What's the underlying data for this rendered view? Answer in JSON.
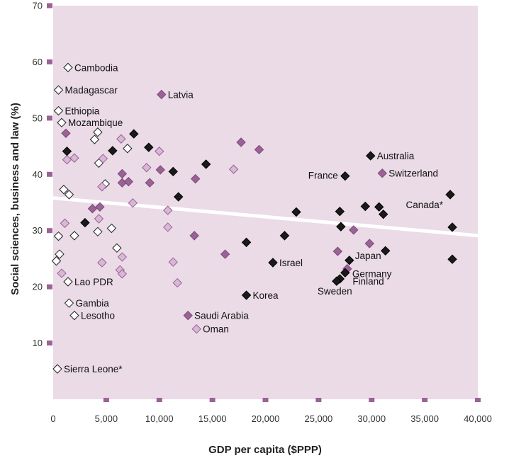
{
  "chart_data": {
    "type": "scatter",
    "title": "",
    "xlabel": "GDP per capita ($PPP)",
    "ylabel": "Social sciences, business and law (%)",
    "xlim": [
      0,
      40000
    ],
    "ylim": [
      0,
      70
    ],
    "x_ticks": [
      0,
      5000,
      10000,
      15000,
      20000,
      25000,
      30000,
      35000,
      40000
    ],
    "x_tick_labels": [
      "0",
      "5,000",
      "10,000",
      "15,000",
      "20,000",
      "25,000",
      "30,000",
      "35,000",
      "40,000"
    ],
    "y_ticks": [
      10,
      20,
      30,
      40,
      50,
      60,
      70
    ],
    "y_tick_labels": [
      "10",
      "20",
      "30",
      "40",
      "50",
      "60",
      "70"
    ],
    "grid": false,
    "plot_background": "#eadbe6",
    "trendline": {
      "x": [
        0,
        40000
      ],
      "y": [
        35.8,
        29.1
      ],
      "color": "#ffffff"
    },
    "colors": {
      "white": "#ffffff",
      "light": "#d7b8d5",
      "medium": "#9b6296",
      "dark": "#1a1a1a"
    },
    "series": [
      {
        "style": "white",
        "points": [
          {
            "x": 1400,
            "y": 59,
            "label": "Cambodia"
          },
          {
            "x": 500,
            "y": 55,
            "label": "Madagascar"
          },
          {
            "x": 500,
            "y": 51.3,
            "label": "Ethiopia"
          },
          {
            "x": 800,
            "y": 49.2,
            "label": "Mozambique"
          },
          {
            "x": 1400,
            "y": 20.9,
            "label": "Lao PDR"
          },
          {
            "x": 1500,
            "y": 17.1,
            "label": "Gambia"
          },
          {
            "x": 2000,
            "y": 14.9,
            "label": "Lesotho"
          },
          {
            "x": 400,
            "y": 5.4,
            "label": "Sierra Leone*"
          },
          {
            "x": 3900,
            "y": 46.2
          },
          {
            "x": 4200,
            "y": 47.5
          },
          {
            "x": 4300,
            "y": 42.0
          },
          {
            "x": 4900,
            "y": 38.3
          },
          {
            "x": 7000,
            "y": 44.6
          },
          {
            "x": 1000,
            "y": 37.3
          },
          {
            "x": 1500,
            "y": 36.4
          },
          {
            "x": 2000,
            "y": 29.1
          },
          {
            "x": 4200,
            "y": 29.8
          },
          {
            "x": 5500,
            "y": 30.4
          },
          {
            "x": 6000,
            "y": 26.9
          },
          {
            "x": 500,
            "y": 29.0
          },
          {
            "x": 300,
            "y": 24.6
          },
          {
            "x": 600,
            "y": 25.8
          }
        ]
      },
      {
        "style": "light",
        "points": [
          {
            "x": 1300,
            "y": 42.6
          },
          {
            "x": 2000,
            "y": 42.9
          },
          {
            "x": 4700,
            "y": 42.8
          },
          {
            "x": 6400,
            "y": 46.3
          },
          {
            "x": 10000,
            "y": 44.1
          },
          {
            "x": 8800,
            "y": 41.2
          },
          {
            "x": 4600,
            "y": 37.8
          },
          {
            "x": 7500,
            "y": 34.9
          },
          {
            "x": 1100,
            "y": 31.3
          },
          {
            "x": 4300,
            "y": 32.1
          },
          {
            "x": 10800,
            "y": 33.6
          },
          {
            "x": 10800,
            "y": 30.6
          },
          {
            "x": 4600,
            "y": 24.3
          },
          {
            "x": 6500,
            "y": 25.3
          },
          {
            "x": 6300,
            "y": 23.0
          },
          {
            "x": 6500,
            "y": 22.3
          },
          {
            "x": 800,
            "y": 22.4
          },
          {
            "x": 11300,
            "y": 24.4
          },
          {
            "x": 11700,
            "y": 20.7
          },
          {
            "x": 17000,
            "y": 40.9
          },
          {
            "x": 13500,
            "y": 12.5,
            "label": "Oman"
          }
        ]
      },
      {
        "style": "medium",
        "points": [
          {
            "x": 10200,
            "y": 54.2,
            "label": "Latvia"
          },
          {
            "x": 1200,
            "y": 47.3
          },
          {
            "x": 6500,
            "y": 40.1
          },
          {
            "x": 6500,
            "y": 38.5
          },
          {
            "x": 7100,
            "y": 38.7
          },
          {
            "x": 10100,
            "y": 40.8
          },
          {
            "x": 9100,
            "y": 38.5
          },
          {
            "x": 3700,
            "y": 33.9
          },
          {
            "x": 4400,
            "y": 34.2
          },
          {
            "x": 13400,
            "y": 39.2
          },
          {
            "x": 17700,
            "y": 45.7
          },
          {
            "x": 19400,
            "y": 44.4
          },
          {
            "x": 13300,
            "y": 29.1
          },
          {
            "x": 16200,
            "y": 25.8
          },
          {
            "x": 12700,
            "y": 14.9,
            "label": "Saudi Arabia"
          },
          {
            "x": 31000,
            "y": 40.2,
            "label": "Switzerland"
          },
          {
            "x": 26800,
            "y": 26.3
          },
          {
            "x": 28300,
            "y": 30.1
          },
          {
            "x": 27700,
            "y": 23.2
          },
          {
            "x": 29800,
            "y": 27.7
          }
        ]
      },
      {
        "style": "dark",
        "points": [
          {
            "x": 29900,
            "y": 43.3,
            "label": "Australia"
          },
          {
            "x": 27500,
            "y": 39.7,
            "label": "France"
          },
          {
            "x": 37400,
            "y": 36.4,
            "label": "Canada*"
          },
          {
            "x": 20700,
            "y": 24.3,
            "label": "Israel"
          },
          {
            "x": 18200,
            "y": 18.5,
            "label": "Korea"
          },
          {
            "x": 27900,
            "y": 24.7,
            "label": "Japan"
          },
          {
            "x": 27500,
            "y": 22.5,
            "label": "Germany"
          },
          {
            "x": 27000,
            "y": 21.4,
            "label": "Finland"
          },
          {
            "x": 26700,
            "y": 21.0,
            "label": "Sweden"
          },
          {
            "x": 1300,
            "y": 44.1
          },
          {
            "x": 5600,
            "y": 44.2
          },
          {
            "x": 7600,
            "y": 47.2
          },
          {
            "x": 9000,
            "y": 44.8
          },
          {
            "x": 11300,
            "y": 40.5
          },
          {
            "x": 14400,
            "y": 41.8
          },
          {
            "x": 11800,
            "y": 36.0
          },
          {
            "x": 3000,
            "y": 31.4
          },
          {
            "x": 18200,
            "y": 27.9
          },
          {
            "x": 21800,
            "y": 29.1
          },
          {
            "x": 22900,
            "y": 33.3
          },
          {
            "x": 27000,
            "y": 33.4
          },
          {
            "x": 27100,
            "y": 30.7
          },
          {
            "x": 29400,
            "y": 34.3
          },
          {
            "x": 30700,
            "y": 34.2
          },
          {
            "x": 31100,
            "y": 32.9
          },
          {
            "x": 31300,
            "y": 26.4
          },
          {
            "x": 37600,
            "y": 30.6
          },
          {
            "x": 37600,
            "y": 24.9
          }
        ]
      }
    ]
  }
}
